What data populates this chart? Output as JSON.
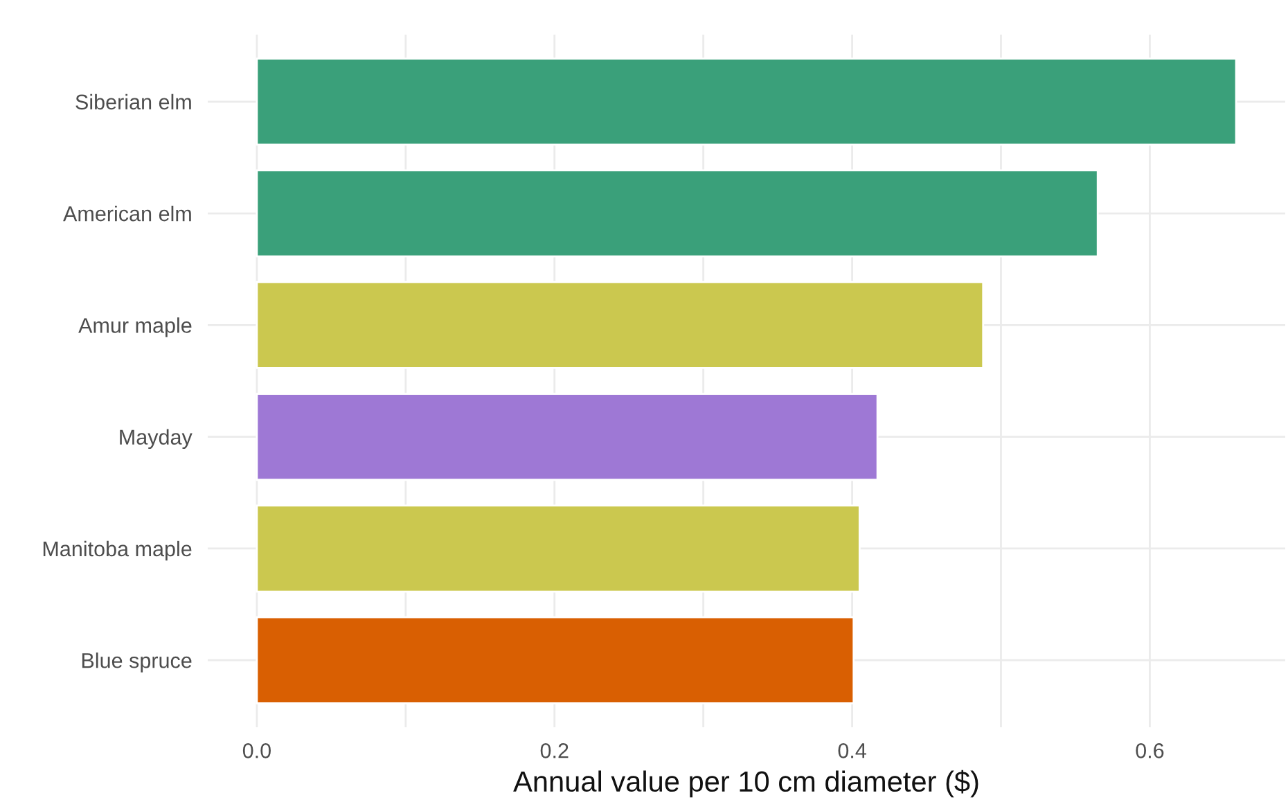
{
  "chart_data": {
    "type": "bar",
    "orientation": "horizontal",
    "xlabel": "Annual value per 10 cm diameter ($)",
    "categories": [
      "Siberian elm",
      "American elm",
      "Amur maple",
      "Mayday",
      "Manitoba maple",
      "Blue spruce"
    ],
    "values": [
      0.658,
      0.565,
      0.488,
      0.417,
      0.405,
      0.401
    ],
    "colors": [
      "#3aa07a",
      "#3aa07a",
      "#cbc84f",
      "#9e78d5",
      "#cbc84f",
      "#d95f02"
    ],
    "xlim": [
      -0.033,
      0.691
    ],
    "xticks": [
      {
        "value": 0.0,
        "label": "0.0"
      },
      {
        "value": 0.1,
        "label": null
      },
      {
        "value": 0.2,
        "label": "0.2"
      },
      {
        "value": 0.3,
        "label": null
      },
      {
        "value": 0.4,
        "label": "0.4"
      },
      {
        "value": 0.5,
        "label": null
      },
      {
        "value": 0.6,
        "label": "0.6"
      }
    ],
    "grid": true,
    "legend": false
  }
}
